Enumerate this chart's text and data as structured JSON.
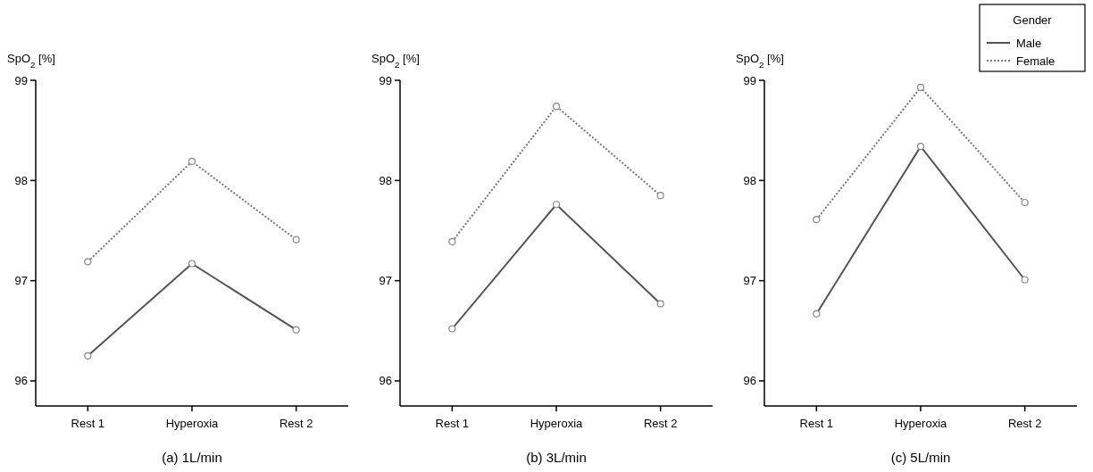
{
  "chart_data": [
    {
      "type": "line",
      "title": "(a) 1L/min",
      "ylabel": "SpO$_{2}$ [%]",
      "categories": [
        "Rest 1",
        "Hyperoxia",
        "Rest 2"
      ],
      "ylim": [
        95.75,
        99
      ],
      "yticks": [
        96,
        97,
        98,
        99
      ],
      "marker": "circle",
      "legend": false,
      "grid": false,
      "series": [
        {
          "color": "#555555",
          "line_style": "solid",
          "values": [
            96.25,
            97.17,
            96.51
          ]
        },
        {
          "color": "#777777",
          "line_style": "dotted",
          "values": [
            97.19,
            98.19,
            97.41
          ]
        }
      ]
    },
    {
      "type": "line",
      "title": "(b) 3L/min",
      "ylabel": "SpO$_{2}$ [%]",
      "categories": [
        "Rest 1",
        "Hyperoxia",
        "Rest 2"
      ],
      "ylim": [
        95.75,
        99
      ],
      "yticks": [
        96,
        97,
        98,
        99
      ],
      "marker": "circle",
      "legend": false,
      "grid": false,
      "series": [
        {
          "color": "#555555",
          "line_style": "solid",
          "values": [
            96.52,
            97.76,
            96.77
          ]
        },
        {
          "color": "#777777",
          "line_style": "dotted",
          "values": [
            97.39,
            98.74,
            97.85
          ]
        }
      ]
    },
    {
      "type": "line",
      "title": "(c) 5L/min",
      "ylabel": "SpO$_{2}$ [%]",
      "legend_title": "Gender",
      "categories": [
        "Rest 1",
        "Hyperoxia",
        "Rest 2"
      ],
      "ylim": [
        95.75,
        99
      ],
      "yticks": [
        96,
        97,
        98,
        99
      ],
      "marker": "circle",
      "legend": "top right",
      "grid": false,
      "series": [
        {
          "name": "Male",
          "color": "#555555",
          "line_style": "solid",
          "values": [
            96.67,
            98.34,
            97.01
          ]
        },
        {
          "name": "Female",
          "color": "#777777",
          "line_style": "dotted",
          "values": [
            97.61,
            98.93,
            97.78
          ]
        }
      ]
    }
  ]
}
